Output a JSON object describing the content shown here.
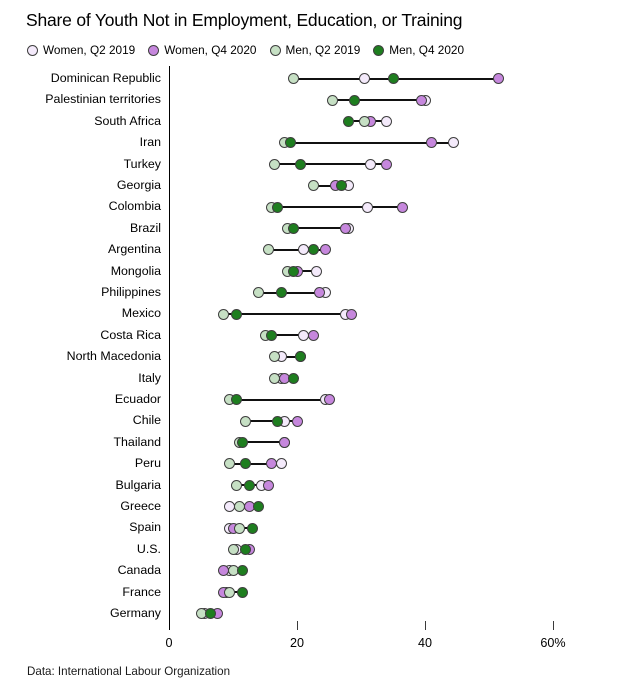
{
  "title": "Share of Youth Not in Employment, Education, or Training",
  "source": "Data: International Labour Organization",
  "legend": {
    "items": [
      {
        "label": "Women, Q2 2019",
        "color": "#f4eafb"
      },
      {
        "label": "Women, Q4 2020",
        "color": "#c687dd"
      },
      {
        "label": "Men, Q2 2019",
        "color": "#c6e0c4"
      },
      {
        "label": "Men, Q4 2020",
        "color": "#1e7e1f"
      }
    ]
  },
  "chart_data": {
    "type": "scatter",
    "subtype": "dumbbell-dot-plot",
    "title": "Share of Youth Not in Employment, Education, or Training",
    "unit": "percent",
    "xlabel": "",
    "ylabel": "",
    "xlim": [
      0,
      63
    ],
    "x_ticks": [
      0,
      20,
      40,
      60
    ],
    "x_tick_labels": [
      "0",
      "20",
      "40",
      "60%"
    ],
    "grid": false,
    "legend_position": "top",
    "connector_color": "#111111",
    "categories": [
      "Dominican Republic",
      "Palestinian territories",
      "South Africa",
      "Iran",
      "Turkey",
      "Georgia",
      "Colombia",
      "Brazil",
      "Argentina",
      "Mongolia",
      "Philippines",
      "Mexico",
      "Costa Rica",
      "North Macedonia",
      "Italy",
      "Ecuador",
      "Chile",
      "Thailand",
      "Peru",
      "Bulgaria",
      "Greece",
      "Spain",
      "U.S.",
      "Canada",
      "France",
      "Germany"
    ],
    "series": [
      {
        "name": "Women, Q2 2019",
        "color": "#f4eafb",
        "values": [
          30.5,
          40,
          34,
          44.5,
          31.5,
          28,
          31,
          28,
          21,
          23,
          24.5,
          27.5,
          21,
          17.5,
          17.5,
          24.5,
          18,
          18,
          17.5,
          14.5,
          9.5,
          9.5,
          10.5,
          9.5,
          9,
          5.5
        ]
      },
      {
        "name": "Women, Q4 2020",
        "color": "#c687dd",
        "values": [
          51.5,
          39.5,
          31.5,
          41,
          34,
          26,
          36.5,
          27.5,
          24.5,
          20,
          23.5,
          28.5,
          22.5,
          20.5,
          18,
          25,
          20,
          18,
          16,
          15.5,
          12.5,
          10,
          12.5,
          8.5,
          8.5,
          7.5
        ]
      },
      {
        "name": "Men, Q2 2019",
        "color": "#c6e0c4",
        "values": [
          19.5,
          25.5,
          30.5,
          18,
          16.5,
          22.5,
          16,
          18.5,
          15.5,
          18.5,
          14,
          8.5,
          15,
          16.5,
          16.5,
          9.5,
          12,
          11,
          9.5,
          10.5,
          11,
          11,
          10,
          10,
          9.5,
          5
        ]
      },
      {
        "name": "Men, Q4 2020",
        "color": "#1e7e1f",
        "values": [
          35,
          29,
          28,
          19,
          20.5,
          27,
          17,
          19.5,
          22.5,
          19.5,
          17.5,
          10.5,
          16,
          20.5,
          19.5,
          10.5,
          17,
          11.5,
          12,
          12.5,
          14,
          13,
          12,
          11.5,
          11.5,
          6.5
        ]
      }
    ]
  }
}
